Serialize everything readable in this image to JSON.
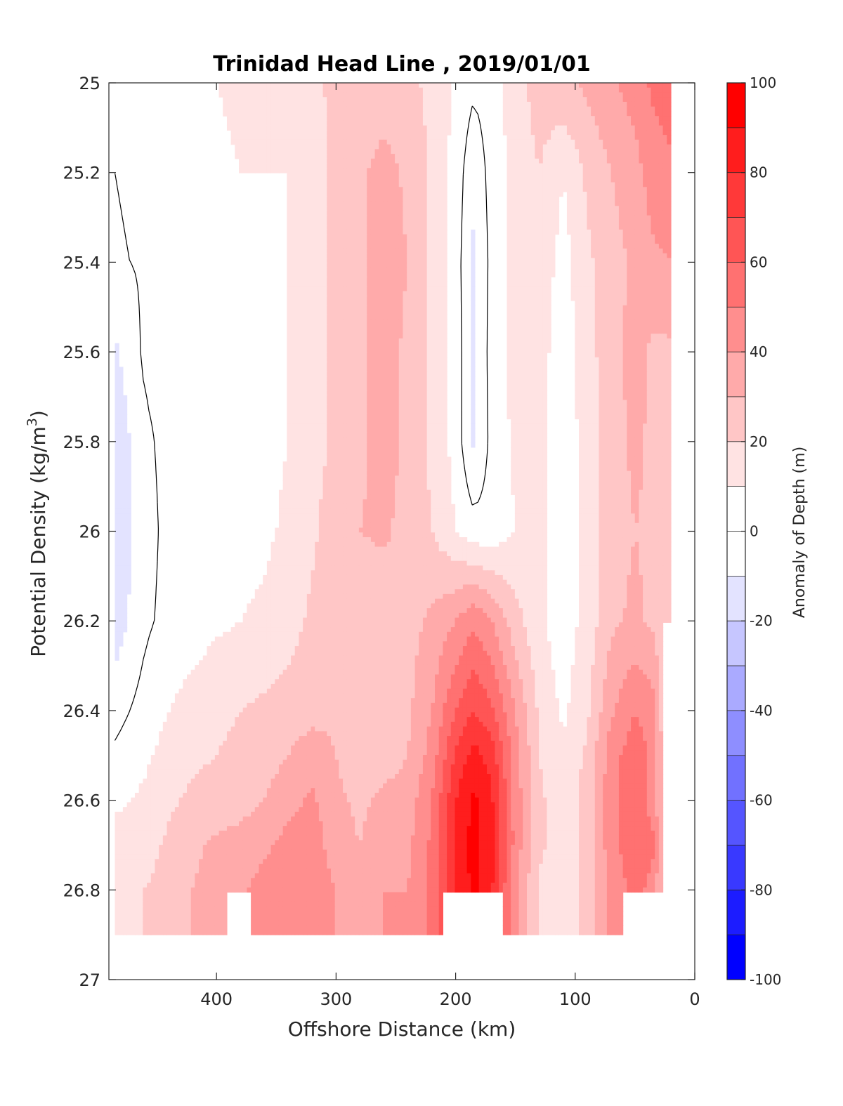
{
  "chart_data": {
    "type": "heatmap",
    "title": "Trinidad Head Line , 2019/01/01",
    "xlabel": "Offshore Distance (km)",
    "ylabel_main": "Potential Density (kg/m",
    "ylabel_sup": "3",
    "ylabel_close": ")",
    "colorbar_label": "Anomaly of Depth (m)",
    "xlim": [
      490,
      0
    ],
    "ylim": [
      25,
      27
    ],
    "x_reversed": true,
    "y_reversed": true,
    "x_ticks": [
      400,
      300,
      200,
      100,
      0
    ],
    "x_tick_labels": [
      "400",
      "300",
      "200",
      "100",
      "0"
    ],
    "y_ticks": [
      25,
      25.2,
      25.4,
      25.6,
      25.8,
      26,
      26.2,
      26.4,
      26.6,
      26.8,
      27
    ],
    "y_tick_labels": [
      "25",
      "25.2",
      "25.4",
      "25.6",
      "25.8",
      "26",
      "26.2",
      "26.4",
      "26.6",
      "26.8",
      "27"
    ],
    "colorbar_range": [
      -100,
      100
    ],
    "colorbar_ticks": [
      100,
      80,
      60,
      40,
      20,
      0,
      -20,
      -40,
      -60,
      -80,
      -100
    ],
    "colorbar_tick_labels": [
      "100",
      "80",
      "60",
      "40",
      "20",
      "0",
      "-20",
      "-40",
      "-60",
      "-80",
      "-100"
    ],
    "contour_step": 10,
    "colors": {
      "negative_max": "#0000ff",
      "zero": "#ffffff",
      "positive_max": "#ff0000",
      "zero_contour": "#000000"
    },
    "x_cols": [
      485,
      460,
      440,
      420,
      400,
      380,
      360,
      340,
      320,
      300,
      280,
      260,
      240,
      220,
      200,
      185,
      170,
      150,
      130,
      110,
      90,
      70,
      50,
      35,
      20
    ],
    "y_rows": [
      25,
      25.2,
      25.4,
      25.6,
      25.8,
      26,
      26.2,
      26.4,
      26.5,
      26.6,
      26.7,
      26.8,
      26.9
    ],
    "values": [
      [
        2,
        4,
        6,
        8,
        10,
        12,
        13,
        14,
        18,
        22,
        24,
        24,
        22,
        18,
        8,
        2,
        5,
        15,
        25,
        28,
        32,
        38,
        45,
        52,
        55
      ],
      [
        0,
        2,
        4,
        6,
        8,
        10,
        10,
        10,
        16,
        22,
        28,
        34,
        28,
        18,
        6,
        -8,
        4,
        14,
        20,
        10,
        22,
        30,
        36,
        45,
        48
      ],
      [
        -1,
        1,
        2,
        3,
        5,
        7,
        8,
        10,
        16,
        22,
        28,
        35,
        30,
        18,
        5,
        -12,
        3,
        14,
        16,
        6,
        18,
        26,
        32,
        38,
        40
      ],
      [
        -12,
        2,
        3,
        4,
        5,
        6,
        7,
        10,
        16,
        22,
        28,
        34,
        28,
        18,
        6,
        -12,
        4,
        14,
        14,
        4,
        16,
        26,
        34,
        28,
        28
      ],
      [
        -18,
        -2,
        3,
        4,
        5,
        6,
        7,
        10,
        16,
        22,
        28,
        34,
        28,
        18,
        6,
        -12,
        3,
        12,
        12,
        4,
        14,
        26,
        32,
        28,
        26
      ],
      [
        -18,
        -4,
        3,
        4,
        5,
        6,
        8,
        12,
        18,
        26,
        30,
        32,
        26,
        20,
        10,
        4,
        4,
        10,
        12,
        4,
        14,
        26,
        30,
        28,
        24
      ],
      [
        -16,
        -2,
        3,
        5,
        8,
        10,
        12,
        16,
        22,
        28,
        22,
        22,
        26,
        32,
        40,
        48,
        40,
        24,
        12,
        4,
        14,
        28,
        32,
        28,
        20
      ],
      [
        -4,
        4,
        10,
        14,
        18,
        20,
        22,
        24,
        26,
        28,
        20,
        20,
        28,
        40,
        60,
        70,
        62,
        40,
        18,
        8,
        18,
        38,
        50,
        44,
        10
      ],
      [
        2,
        8,
        14,
        18,
        20,
        22,
        26,
        30,
        36,
        30,
        24,
        26,
        30,
        44,
        72,
        84,
        76,
        44,
        20,
        12,
        22,
        46,
        56,
        48,
        10
      ],
      [
        8,
        12,
        18,
        22,
        24,
        26,
        30,
        36,
        42,
        32,
        28,
        32,
        34,
        50,
        80,
        92,
        82,
        46,
        22,
        14,
        24,
        46,
        56,
        46,
        10
      ],
      [
        14,
        16,
        22,
        28,
        32,
        34,
        38,
        44,
        46,
        34,
        30,
        36,
        38,
        52,
        82,
        94,
        84,
        46,
        22,
        14,
        24,
        46,
        58,
        52,
        10
      ],
      [
        16,
        20,
        24,
        30,
        34,
        38,
        44,
        48,
        48,
        40,
        34,
        40,
        40,
        52,
        82,
        92,
        82,
        42,
        18,
        14,
        24,
        42,
        54,
        46,
        10
      ],
      [
        16,
        20,
        24,
        30,
        34,
        38,
        44,
        48,
        48,
        40,
        34,
        40,
        40,
        52,
        82,
        92,
        82,
        42,
        18,
        14,
        24,
        42,
        54,
        46,
        10
      ]
    ],
    "mask_bottom": [
      26.9,
      26.9,
      26.9,
      26.9,
      26.9,
      26.8,
      26.9,
      26.9,
      26.9,
      26.9,
      26.9,
      26.9,
      26.9,
      26.9,
      26.8,
      26.8,
      26.8,
      26.9,
      26.9,
      26.9,
      26.9,
      26.9,
      26.8,
      26.8,
      26.2
    ]
  }
}
